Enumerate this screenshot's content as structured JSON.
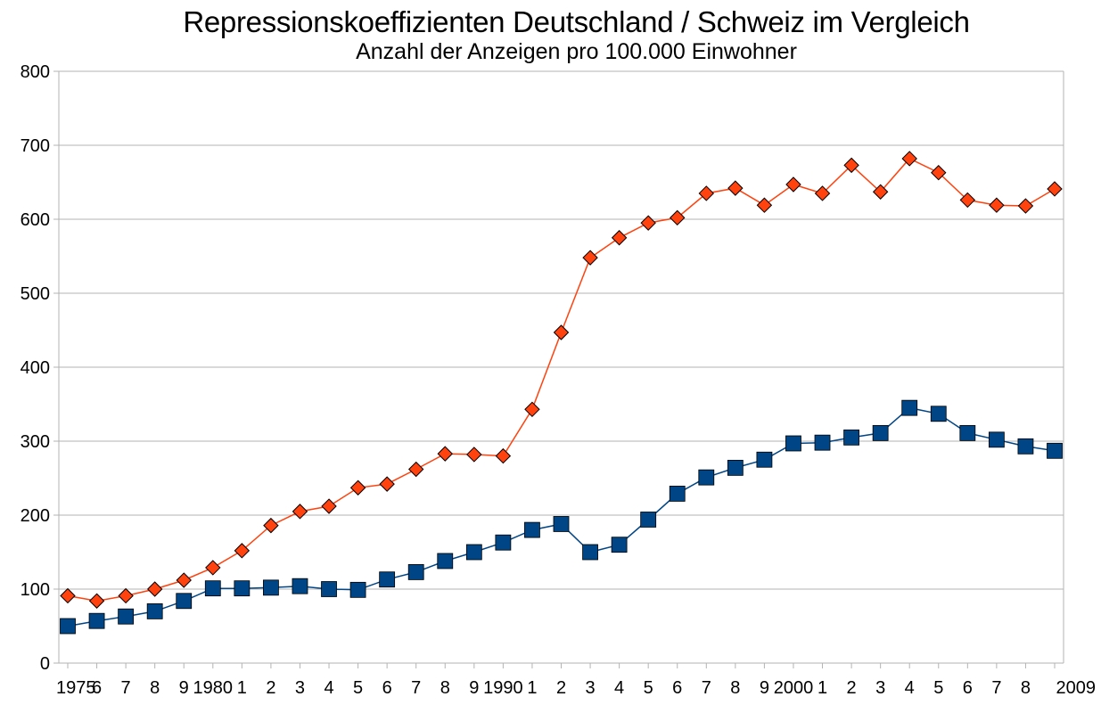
{
  "chart_data": {
    "type": "line",
    "title": "Repressionskoeffizienten Deutschland / Schweiz im Vergleich",
    "subtitle": "Anzahl der Anzeigen pro 100.000 Einwohner",
    "xlabel": "",
    "ylabel": "",
    "ylim": [
      0,
      800
    ],
    "yticks": [
      "0",
      "100",
      "200",
      "300",
      "400",
      "500",
      "600",
      "700",
      "800"
    ],
    "grid": true,
    "legend": "none",
    "categories": [
      "1975",
      "6",
      "7",
      "8",
      "9",
      "1980",
      "1",
      "2",
      "3",
      "4",
      "5",
      "6",
      "7",
      "8",
      "9",
      "1990",
      "1",
      "2",
      "3",
      "4",
      "5",
      "6",
      "7",
      "8",
      "9",
      "2000",
      "1",
      "2",
      "3",
      "4",
      "5",
      "6",
      "7",
      "8",
      "2009"
    ],
    "series": [
      {
        "marker": "diamond",
        "color": "#ff420e",
        "values": [
          91,
          84,
          91,
          100,
          112,
          129,
          152,
          186,
          205,
          212,
          237,
          242,
          262,
          283,
          282,
          280,
          343,
          447,
          548,
          575,
          595,
          602,
          635,
          642,
          619,
          647,
          635,
          673,
          637,
          682,
          663,
          626,
          619,
          618,
          641
        ]
      },
      {
        "marker": "square",
        "color": "#004586",
        "values": [
          50,
          57,
          63,
          70,
          84,
          101,
          101,
          102,
          104,
          100,
          99,
          113,
          123,
          138,
          150,
          163,
          180,
          188,
          150,
          160,
          194,
          229,
          251,
          264,
          275,
          297,
          298,
          305,
          311,
          345,
          337,
          311,
          302,
          293,
          287
        ]
      }
    ]
  }
}
